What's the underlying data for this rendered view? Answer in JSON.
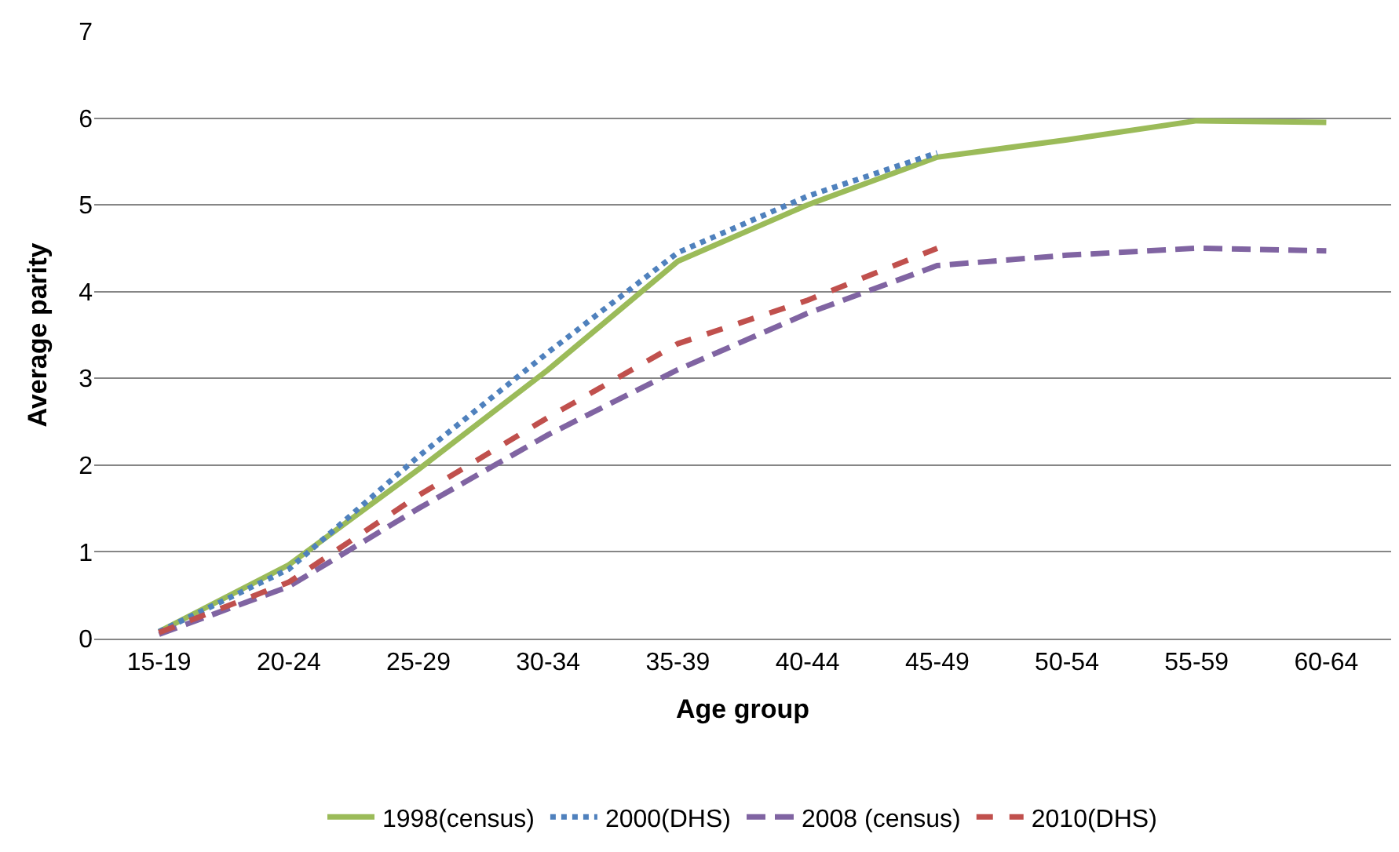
{
  "chart_data": {
    "type": "line",
    "xlabel": "Age group",
    "ylabel": "Average parity",
    "categories": [
      "15-19",
      "20-24",
      "25-29",
      "30-34",
      "35-39",
      "40-44",
      "45-49",
      "50-54",
      "55-59",
      "60-64"
    ],
    "series": [
      {
        "name": "1998(census)",
        "color": "#9bbb59",
        "line_style": "solid",
        "values": [
          0.08,
          0.85,
          1.95,
          3.1,
          4.35,
          5.0,
          5.55,
          5.75,
          5.97,
          5.95
        ]
      },
      {
        "name": "2000(DHS)",
        "color": "#4f81bd",
        "line_style": "dotted",
        "values": [
          0.08,
          0.8,
          2.1,
          3.3,
          4.45,
          5.1,
          5.6,
          null,
          null,
          null
        ]
      },
      {
        "name": "2008 (census)",
        "color": "#8064a2",
        "line_style": "dashed",
        "values": [
          0.05,
          0.6,
          1.5,
          2.35,
          3.1,
          3.75,
          4.3,
          4.42,
          4.5,
          4.47
        ]
      },
      {
        "name": "2010(DHS)",
        "color": "#c0504d",
        "line_style": "dashed",
        "values": [
          0.07,
          0.65,
          1.65,
          2.55,
          3.4,
          3.9,
          4.5,
          null,
          null,
          null
        ]
      }
    ],
    "ylim": [
      0,
      7
    ],
    "yticks": [
      0,
      1,
      2,
      3,
      4,
      5,
      6,
      7
    ],
    "grid": "y",
    "legend": "bottom",
    "marker": "none"
  }
}
